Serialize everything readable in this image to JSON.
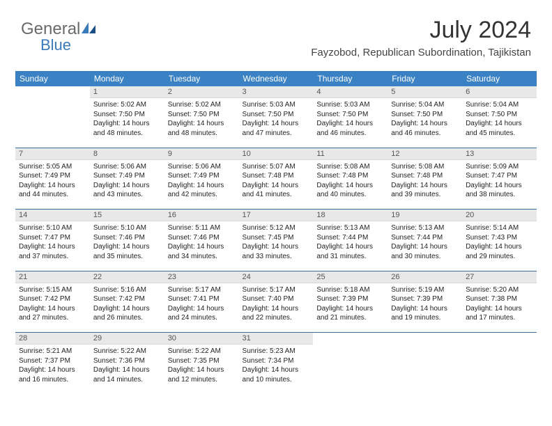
{
  "brand": {
    "part1": "General",
    "part2": "Blue"
  },
  "title": "July 2024",
  "location": "Fayzobod, Republican Subordination, Tajikistan",
  "colors": {
    "header_bg": "#3a82c4",
    "header_fg": "#ffffff",
    "daynum_bg": "#e8e8e8",
    "week_border": "#3a6a9a",
    "logo_blue": "#3a7ab8"
  },
  "weekdays": [
    "Sunday",
    "Monday",
    "Tuesday",
    "Wednesday",
    "Thursday",
    "Friday",
    "Saturday"
  ],
  "weeks": [
    [
      null,
      {
        "n": "1",
        "sr": "5:02 AM",
        "ss": "7:50 PM",
        "dl": "14 hours and 48 minutes."
      },
      {
        "n": "2",
        "sr": "5:02 AM",
        "ss": "7:50 PM",
        "dl": "14 hours and 48 minutes."
      },
      {
        "n": "3",
        "sr": "5:03 AM",
        "ss": "7:50 PM",
        "dl": "14 hours and 47 minutes."
      },
      {
        "n": "4",
        "sr": "5:03 AM",
        "ss": "7:50 PM",
        "dl": "14 hours and 46 minutes."
      },
      {
        "n": "5",
        "sr": "5:04 AM",
        "ss": "7:50 PM",
        "dl": "14 hours and 46 minutes."
      },
      {
        "n": "6",
        "sr": "5:04 AM",
        "ss": "7:50 PM",
        "dl": "14 hours and 45 minutes."
      }
    ],
    [
      {
        "n": "7",
        "sr": "5:05 AM",
        "ss": "7:49 PM",
        "dl": "14 hours and 44 minutes."
      },
      {
        "n": "8",
        "sr": "5:06 AM",
        "ss": "7:49 PM",
        "dl": "14 hours and 43 minutes."
      },
      {
        "n": "9",
        "sr": "5:06 AM",
        "ss": "7:49 PM",
        "dl": "14 hours and 42 minutes."
      },
      {
        "n": "10",
        "sr": "5:07 AM",
        "ss": "7:48 PM",
        "dl": "14 hours and 41 minutes."
      },
      {
        "n": "11",
        "sr": "5:08 AM",
        "ss": "7:48 PM",
        "dl": "14 hours and 40 minutes."
      },
      {
        "n": "12",
        "sr": "5:08 AM",
        "ss": "7:48 PM",
        "dl": "14 hours and 39 minutes."
      },
      {
        "n": "13",
        "sr": "5:09 AM",
        "ss": "7:47 PM",
        "dl": "14 hours and 38 minutes."
      }
    ],
    [
      {
        "n": "14",
        "sr": "5:10 AM",
        "ss": "7:47 PM",
        "dl": "14 hours and 37 minutes."
      },
      {
        "n": "15",
        "sr": "5:10 AM",
        "ss": "7:46 PM",
        "dl": "14 hours and 35 minutes."
      },
      {
        "n": "16",
        "sr": "5:11 AM",
        "ss": "7:46 PM",
        "dl": "14 hours and 34 minutes."
      },
      {
        "n": "17",
        "sr": "5:12 AM",
        "ss": "7:45 PM",
        "dl": "14 hours and 33 minutes."
      },
      {
        "n": "18",
        "sr": "5:13 AM",
        "ss": "7:44 PM",
        "dl": "14 hours and 31 minutes."
      },
      {
        "n": "19",
        "sr": "5:13 AM",
        "ss": "7:44 PM",
        "dl": "14 hours and 30 minutes."
      },
      {
        "n": "20",
        "sr": "5:14 AM",
        "ss": "7:43 PM",
        "dl": "14 hours and 29 minutes."
      }
    ],
    [
      {
        "n": "21",
        "sr": "5:15 AM",
        "ss": "7:42 PM",
        "dl": "14 hours and 27 minutes."
      },
      {
        "n": "22",
        "sr": "5:16 AM",
        "ss": "7:42 PM",
        "dl": "14 hours and 26 minutes."
      },
      {
        "n": "23",
        "sr": "5:17 AM",
        "ss": "7:41 PM",
        "dl": "14 hours and 24 minutes."
      },
      {
        "n": "24",
        "sr": "5:17 AM",
        "ss": "7:40 PM",
        "dl": "14 hours and 22 minutes."
      },
      {
        "n": "25",
        "sr": "5:18 AM",
        "ss": "7:39 PM",
        "dl": "14 hours and 21 minutes."
      },
      {
        "n": "26",
        "sr": "5:19 AM",
        "ss": "7:39 PM",
        "dl": "14 hours and 19 minutes."
      },
      {
        "n": "27",
        "sr": "5:20 AM",
        "ss": "7:38 PM",
        "dl": "14 hours and 17 minutes."
      }
    ],
    [
      {
        "n": "28",
        "sr": "5:21 AM",
        "ss": "7:37 PM",
        "dl": "14 hours and 16 minutes."
      },
      {
        "n": "29",
        "sr": "5:22 AM",
        "ss": "7:36 PM",
        "dl": "14 hours and 14 minutes."
      },
      {
        "n": "30",
        "sr": "5:22 AM",
        "ss": "7:35 PM",
        "dl": "14 hours and 12 minutes."
      },
      {
        "n": "31",
        "sr": "5:23 AM",
        "ss": "7:34 PM",
        "dl": "14 hours and 10 minutes."
      },
      null,
      null,
      null
    ]
  ],
  "labels": {
    "sunrise": "Sunrise:",
    "sunset": "Sunset:",
    "daylight": "Daylight:"
  }
}
